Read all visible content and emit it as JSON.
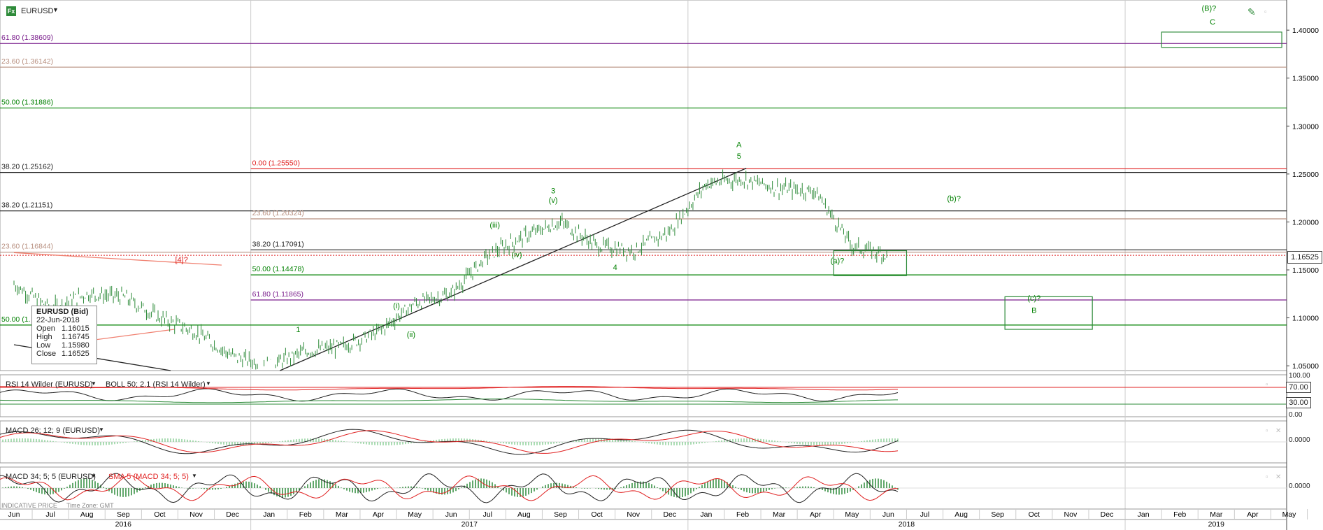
{
  "header": {
    "logo_text": "Fx",
    "symbol": "EURUSD",
    "dropdown_icon": "caret-down-icon",
    "draw_icon": "pencil-icon"
  },
  "colors": {
    "bar": "#2e8b3a",
    "green_label": "#2e8b3a",
    "red": "#e02020",
    "purple": "#7a1e8c",
    "tan": "#b89080",
    "black": "#222222",
    "salmon": "#f08070"
  },
  "info_box": {
    "title": "EURUSD (Bid)",
    "date": "22-Jun-2018",
    "open_label": "Open",
    "open": "1.16015",
    "high_label": "High",
    "high": "1.16745",
    "low_label": "Low",
    "low": "1.15980",
    "close_label": "Close",
    "close": "1.16525"
  },
  "last_price": "1.16525",
  "footer": {
    "indicative": "INDICATIVE PRICE",
    "timezone": "Time Zone: GMT"
  },
  "panels": {
    "rsi_title": "RSI 14 Wilder (EURUSD)",
    "boll_title": "BOLL 50; 2.1 (RSI 14 Wilder)",
    "rsi_ticks": [
      "100.00",
      "70.00",
      "30.00",
      "0.00"
    ],
    "macd1_title": "MACD 26; 12; 9 (EURUSD)",
    "macd1_tick": "0.0000",
    "macd2_title": "MACD 34; 5; 5 (EURUSD)",
    "sma_title": "SMA 5 (MACD 34; 5; 5)",
    "macd2_tick": "0.0000"
  },
  "chart_data": {
    "type": "bar",
    "symbol": "EURUSD",
    "ylim": [
      1.045,
      1.43
    ],
    "y_ticks": [
      "1.40000",
      "1.35000",
      "1.30000",
      "1.25000",
      "1.20000",
      "1.15000",
      "1.10000",
      "1.05000"
    ],
    "y_tick_values": [
      1.4,
      1.35,
      1.3,
      1.25,
      1.2,
      1.15,
      1.1,
      1.05
    ],
    "months": [
      "Jun",
      "Jul",
      "Aug",
      "Sep",
      "Oct",
      "Nov",
      "Dec",
      "Jan",
      "Feb",
      "Mar",
      "Apr",
      "May",
      "Jun",
      "Jul",
      "Aug",
      "Sep",
      "Oct",
      "Nov",
      "Dec",
      "Jan",
      "Feb",
      "Mar",
      "Apr",
      "May",
      "Jun",
      "Jul",
      "Aug",
      "Sep",
      "Oct",
      "Nov",
      "Dec",
      "Jan",
      "Feb",
      "Mar",
      "Apr",
      "May"
    ],
    "years": [
      "2016",
      "2017",
      "2018",
      "2019"
    ],
    "monthly_close_points": [
      [
        0,
        1.135
      ],
      [
        1,
        1.11
      ],
      [
        2,
        1.125
      ],
      [
        3,
        1.122
      ],
      [
        4,
        1.1
      ],
      [
        5,
        1.085
      ],
      [
        6,
        1.06
      ],
      [
        7,
        1.05
      ],
      [
        8,
        1.065
      ],
      [
        9,
        1.07
      ],
      [
        10,
        1.085
      ],
      [
        11,
        1.115
      ],
      [
        12,
        1.125
      ],
      [
        13,
        1.165
      ],
      [
        14,
        1.185
      ],
      [
        15,
        1.2
      ],
      [
        16,
        1.175
      ],
      [
        17,
        1.17
      ],
      [
        18,
        1.19
      ],
      [
        19,
        1.24
      ],
      [
        20,
        1.245
      ],
      [
        21,
        1.235
      ],
      [
        22,
        1.232
      ],
      [
        23,
        1.175
      ],
      [
        24,
        1.165
      ]
    ],
    "fib_lines": [
      {
        "label": "61.80 (1.38609)",
        "value": 1.38609,
        "color": "purple"
      },
      {
        "label": "23.60 (1.36142)",
        "value": 1.36142,
        "color": "tan"
      },
      {
        "label": "50.00 (1.31886)",
        "value": 1.31886,
        "color": "green"
      },
      {
        "label": "38.20 (1.25162)",
        "value": 1.25162,
        "color": "black"
      },
      {
        "label": "0.00 (1.25550)",
        "value": 1.2555,
        "color": "red",
        "start_month": 6.5
      },
      {
        "label": "38.20 (1.21151)",
        "value": 1.21151,
        "color": "black"
      },
      {
        "label": "23.60 (1.20324)",
        "value": 1.20324,
        "color": "tan",
        "start_month": 6.5
      },
      {
        "label": "38.20 (1.17091)",
        "value": 1.17091,
        "color": "black",
        "start_month": 6.5
      },
      {
        "label": "23.60 (1.16844)",
        "value": 1.16844,
        "color": "tan"
      },
      {
        "label": "50.00 (1.14478)",
        "value": 1.14478,
        "color": "green",
        "start_month": 6.5
      },
      {
        "label": "61.80 (1.11865)",
        "value": 1.11865,
        "color": "purple",
        "start_month": 6.5
      },
      {
        "label": "50.00 (1.",
        "value": 1.0925,
        "color": "green"
      }
    ],
    "wave_labels": [
      {
        "text": "[4]?",
        "x": 4.6,
        "y": 1.158,
        "color": "red"
      },
      {
        "text": "1",
        "x": 7.8,
        "y": 1.085,
        "color": "green"
      },
      {
        "text": "(i)",
        "x": 10.5,
        "y": 1.11,
        "color": "green"
      },
      {
        "text": "(ii)",
        "x": 10.9,
        "y": 1.08,
        "color": "green"
      },
      {
        "text": "(iii)",
        "x": 13.2,
        "y": 1.194,
        "color": "green"
      },
      {
        "text": "(iv)",
        "x": 13.8,
        "y": 1.163,
        "color": "green"
      },
      {
        "text": "3",
        "x": 14.8,
        "y": 1.23,
        "color": "green"
      },
      {
        "text": "(v)",
        "x": 14.8,
        "y": 1.22,
        "color": "green"
      },
      {
        "text": "4",
        "x": 16.5,
        "y": 1.15,
        "color": "green"
      },
      {
        "text": "A",
        "x": 19.9,
        "y": 1.278,
        "color": "green"
      },
      {
        "text": "5",
        "x": 19.9,
        "y": 1.266,
        "color": "green"
      },
      {
        "text": "(b)?",
        "x": 25.8,
        "y": 1.222,
        "color": "green"
      },
      {
        "text": "(a)?",
        "x": 22.6,
        "y": 1.157,
        "color": "green"
      },
      {
        "text": "(c)?",
        "x": 28.0,
        "y": 1.118,
        "color": "green"
      },
      {
        "text": "B",
        "x": 28.0,
        "y": 1.105,
        "color": "green"
      },
      {
        "text": "(B)?",
        "x": 32.8,
        "y": 1.42,
        "color": "green"
      },
      {
        "text": "C",
        "x": 32.9,
        "y": 1.406,
        "color": "green"
      }
    ],
    "boxes": [
      {
        "x0": 22.5,
        "x1": 24.5,
        "y0": 1.144,
        "y1": 1.17
      },
      {
        "x0": 27.2,
        "x1": 29.6,
        "y0": 1.088,
        "y1": 1.122
      },
      {
        "x0": 31.5,
        "x1": 34.8,
        "y0": 1.382,
        "y1": 1.398
      }
    ],
    "trend_lines": [
      {
        "x0": 7.3,
        "y0": 1.045,
        "x1": 20.1,
        "y1": 1.256,
        "color": "black"
      },
      {
        "x0": 0.0,
        "y0": 1.168,
        "x1": 5.7,
        "y1": 1.155,
        "color": "salmon"
      },
      {
        "x0": 1.8,
        "y0": 1.075,
        "x1": 4.4,
        "y1": 1.088,
        "color": "salmon"
      },
      {
        "x0": 0.0,
        "y0": 1.072,
        "x1": 4.3,
        "y1": 1.045,
        "color": "black"
      }
    ],
    "price_line": 1.16525,
    "legend": "none",
    "grid": "vertical year separators"
  }
}
